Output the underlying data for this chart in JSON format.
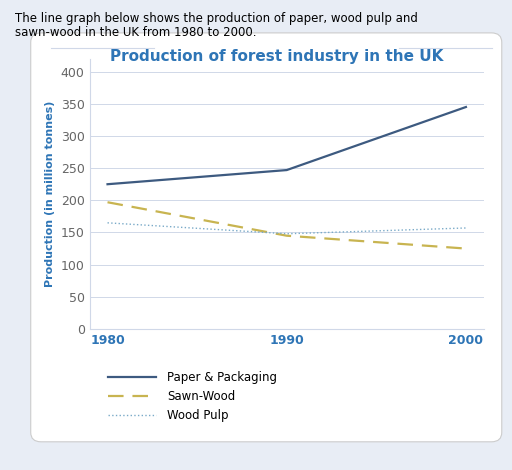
{
  "title": "Production of forest industry in the UK",
  "description_line1": "The line graph below shows the production of paper, wood pulp and",
  "description_line2": "sawn-wood in the UK from 1980 to 2000.",
  "ylabel": "Production (in million tonnes)",
  "years": [
    1980,
    1990,
    2000
  ],
  "paper": [
    225,
    247,
    345
  ],
  "sawn_wood": [
    197,
    145,
    125
  ],
  "wood_pulp": [
    165,
    148,
    157
  ],
  "ylim": [
    0,
    420
  ],
  "yticks": [
    0,
    50,
    100,
    150,
    200,
    250,
    300,
    350,
    400
  ],
  "xticks": [
    1980,
    1990,
    2000
  ],
  "paper_color": "#3d5a80",
  "sawn_wood_color": "#c8b450",
  "wood_pulp_color": "#7aaac8",
  "title_color": "#2e75b6",
  "axis_label_color": "#2e75b6",
  "tick_color_x": "#2e75b6",
  "tick_color_y": "#666666",
  "bg_color": "#e8edf5",
  "card_color": "#ffffff",
  "card_edge_color": "#cccccc",
  "grid_color": "#d0d8e8",
  "legend_labels": [
    "Paper & Packaging",
    "Sawn-Wood",
    "Wood Pulp"
  ],
  "title_fontsize": 11,
  "label_fontsize": 8,
  "tick_fontsize": 9,
  "legend_fontsize": 8.5,
  "desc_fontsize": 8.5
}
